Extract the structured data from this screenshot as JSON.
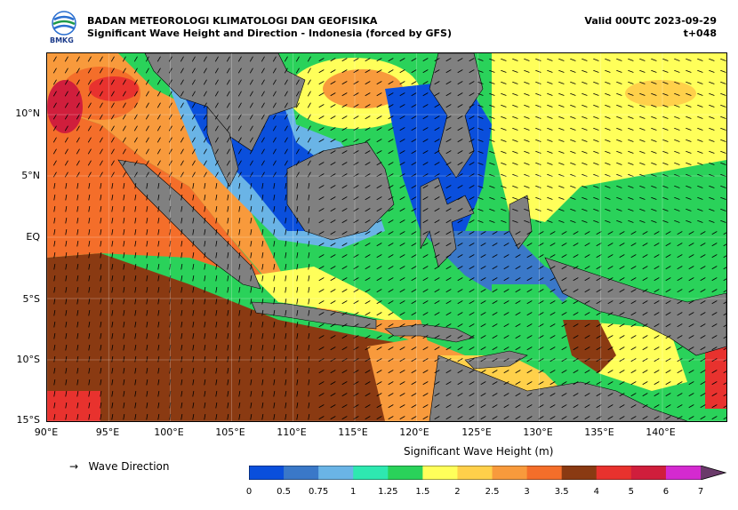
{
  "header": {
    "org": "BADAN METEOROLOGI KLIMATOLOGI DAN GEOFISIKA",
    "subtitle": "Significant Wave Height and Direction - Indonesia (forced by GFS)",
    "valid": "Valid 00UTC 2023-09-29",
    "lead": "t+048",
    "logo_text": "BMKG"
  },
  "map": {
    "lat_labels": [
      "10°N",
      "5°N",
      "EQ",
      "5°S",
      "10°S",
      "15°S"
    ],
    "lon_labels": [
      "90°E",
      "95°E",
      "100°E",
      "105°E",
      "110°E",
      "115°E",
      "120°E",
      "125°E",
      "130°E",
      "135°E",
      "140°E"
    ],
    "land_color": "#808080"
  },
  "legend": {
    "direction_label": "Wave Direction",
    "arrow_glyph": "→",
    "colorbar_title": "Significant Wave Height (m)",
    "ticks": [
      "0",
      "0.5",
      "0.75",
      "1",
      "1.25",
      "1.5",
      "2",
      "2.5",
      "3",
      "3.5",
      "4",
      "5",
      "6",
      "7"
    ],
    "colors": [
      "#0a4fdc",
      "#3a78c8",
      "#6ab4e6",
      "#2ee8b0",
      "#2ad25a",
      "#ffff5a",
      "#ffd04a",
      "#f89a3c",
      "#f46e2a",
      "#8a3a12",
      "#e8322e",
      "#d01e3c",
      "#d42ad0",
      "#a0307c"
    ]
  }
}
